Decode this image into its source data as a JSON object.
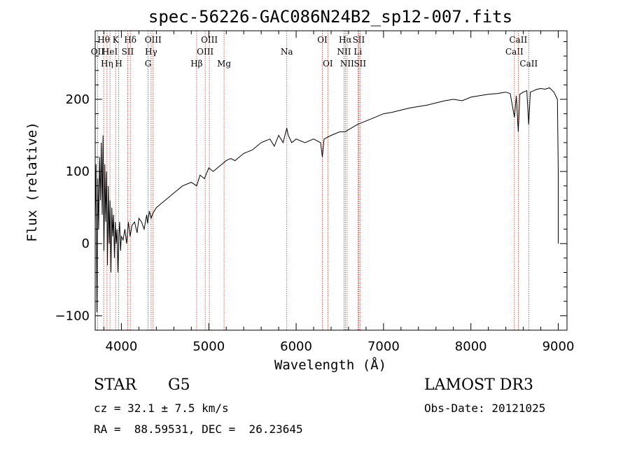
{
  "chart_data": {
    "type": "line",
    "title": "spec-56226-GAC086N24B2_sp12-007.fits",
    "xlabel": "Wavelength (Å)",
    "ylabel": "Flux (relative)",
    "xlim": [
      3700,
      9100
    ],
    "ylim": [
      -120,
      295
    ],
    "xticks": [
      4000,
      5000,
      6000,
      7000,
      8000,
      9000
    ],
    "yticks": [
      -100,
      0,
      100,
      200
    ],
    "series": [
      {
        "name": "flux",
        "x": [
          3700,
          3710,
          3720,
          3730,
          3740,
          3750,
          3760,
          3770,
          3780,
          3790,
          3800,
          3810,
          3820,
          3830,
          3840,
          3850,
          3860,
          3870,
          3880,
          3890,
          3900,
          3910,
          3920,
          3930,
          3940,
          3950,
          3960,
          3970,
          3980,
          3990,
          4000,
          4020,
          4040,
          4060,
          4080,
          4100,
          4120,
          4150,
          4180,
          4200,
          4230,
          4260,
          4290,
          4300,
          4320,
          4340,
          4360,
          4400,
          4450,
          4500,
          4600,
          4700,
          4800,
          4861,
          4900,
          4950,
          5000,
          5050,
          5100,
          5150,
          5200,
          5250,
          5300,
          5400,
          5500,
          5600,
          5700,
          5750,
          5800,
          5850,
          5893,
          5910,
          5950,
          6000,
          6100,
          6200,
          6280,
          6300,
          6320,
          6400,
          6500,
          6563,
          6600,
          6700,
          6800,
          6900,
          7000,
          7100,
          7200,
          7300,
          7400,
          7500,
          7600,
          7700,
          7800,
          7900,
          8000,
          8100,
          8200,
          8300,
          8400,
          8450,
          8498,
          8520,
          8542,
          8560,
          8600,
          8640,
          8662,
          8680,
          8720,
          8760,
          8800,
          8850,
          8900,
          8950,
          8990,
          9000,
          9000
        ],
        "values": [
          30,
          110,
          -95,
          90,
          20,
          120,
          60,
          140,
          40,
          150,
          -10,
          110,
          30,
          100,
          -30,
          80,
          0,
          60,
          -40,
          50,
          10,
          40,
          -20,
          30,
          0,
          20,
          -40,
          10,
          30,
          -10,
          10,
          5,
          20,
          0,
          30,
          10,
          25,
          30,
          15,
          35,
          30,
          20,
          40,
          28,
          45,
          35,
          42,
          50,
          55,
          60,
          70,
          80,
          85,
          80,
          95,
          90,
          105,
          100,
          105,
          110,
          115,
          118,
          115,
          125,
          130,
          140,
          145,
          135,
          150,
          140,
          160,
          150,
          140,
          145,
          140,
          145,
          140,
          120,
          145,
          150,
          155,
          155,
          158,
          165,
          170,
          175,
          180,
          182,
          185,
          188,
          190,
          192,
          195,
          198,
          200,
          198,
          203,
          205,
          207,
          208,
          210,
          208,
          175,
          205,
          155,
          207,
          210,
          212,
          165,
          210,
          212,
          214,
          215,
          214,
          216,
          210,
          200,
          100,
          0
        ]
      }
    ],
    "lines": [
      {
        "w": 3727,
        "label": "OII",
        "row": 1
      },
      {
        "w": 3797,
        "label": "Hθ",
        "row": 0
      },
      {
        "w": 3835,
        "label": "Hη",
        "row": 2
      },
      {
        "w": 3869,
        "label": "HeI",
        "row": 1
      },
      {
        "w": 3934,
        "label": "K",
        "row": 0
      },
      {
        "w": 3969,
        "label": "H",
        "row": 2
      },
      {
        "w": 4072,
        "label": "SII",
        "row": 1
      },
      {
        "w": 4102,
        "label": "Hδ",
        "row": 0
      },
      {
        "w": 4305,
        "label": "G",
        "row": 2
      },
      {
        "w": 4340,
        "label": "Hγ",
        "row": 1
      },
      {
        "w": 4363,
        "label": "OIII",
        "row": 0
      },
      {
        "w": 4861,
        "label": "Hβ",
        "row": 2
      },
      {
        "w": 4959,
        "label": "OIII",
        "row": 1
      },
      {
        "w": 5007,
        "label": "OIII",
        "row": 0
      },
      {
        "w": 5175,
        "label": "Mg",
        "row": 2
      },
      {
        "w": 5893,
        "label": "Na",
        "row": 1
      },
      {
        "w": 6300,
        "label": "OI",
        "row": 0
      },
      {
        "w": 6363,
        "label": "OI",
        "row": 2
      },
      {
        "w": 6548,
        "label": "NII",
        "row": 1
      },
      {
        "w": 6563,
        "label": "Hα",
        "row": 0
      },
      {
        "w": 6583,
        "label": "NII",
        "row": 2
      },
      {
        "w": 6707,
        "label": "Li",
        "row": 1
      },
      {
        "w": 6716,
        "label": "SII",
        "row": 0
      },
      {
        "w": 6731,
        "label": "SII",
        "row": 2
      },
      {
        "w": 8498,
        "label": "CaII",
        "row": 1
      },
      {
        "w": 8542,
        "label": "CaII",
        "row": 0
      },
      {
        "w": 8662,
        "label": "CaII",
        "row": 2
      }
    ]
  },
  "info": {
    "class": "STAR",
    "subclass": "G5",
    "survey": "LAMOST DR3",
    "cz": "cz = 32.1 ± 7.5 km/s",
    "obs_date": "Obs-Date: 20121025",
    "coords": "RA =  88.59531, DEC =  26.23645"
  },
  "colors": {
    "line_marker": "#c0392b",
    "spectrum": "#000000"
  }
}
